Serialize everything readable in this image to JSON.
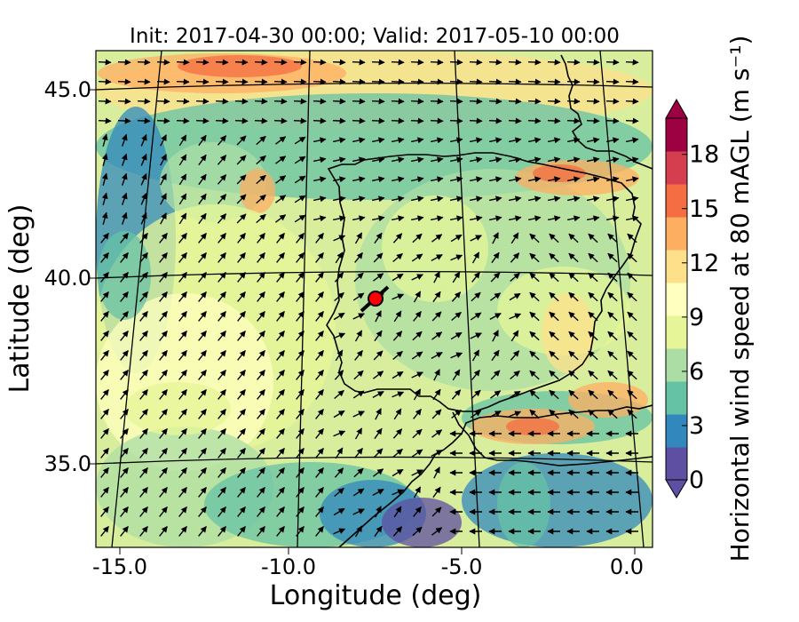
{
  "title": "Init: 2017-04-30 00:00; Valid: 2017-05-10 00:00",
  "xlabel": "Longitude (deg)",
  "ylabel": "Latitude (deg)",
  "x_ticks": [
    "-15.0",
    "-10.0",
    "-5.0",
    "0.0"
  ],
  "y_ticks": [
    "45.0",
    "40.0",
    "35.0"
  ],
  "colorbar": {
    "label": "Horizontal wind speed at 80 mAGL (m s⁻¹)",
    "ticks": [
      "0",
      "3",
      "6",
      "9",
      "12",
      "15",
      "18"
    ],
    "min": 0,
    "max": 20,
    "extend": "both",
    "colormap": [
      "#5e4fa2",
      "#3288bd",
      "#66c2a5",
      "#abdda4",
      "#e6f598",
      "#ffffbf",
      "#fee08b",
      "#fdae61",
      "#f46d43",
      "#d53e4f",
      "#9e0142"
    ]
  },
  "map": {
    "lon_range": [
      -16,
      0.2
    ],
    "lat_range": [
      32.7,
      46.1
    ],
    "projection": "conic",
    "field": "wind speed 80 m AGL with wind vectors",
    "marker": {
      "lon": -7.7,
      "lat": 39.3,
      "color": "#ff0000"
    }
  }
}
